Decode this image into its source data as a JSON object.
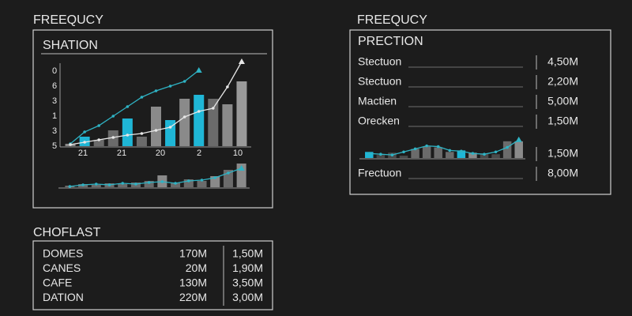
{
  "left_panel": {
    "title": "FREEQUCY",
    "subtitle": "SHATION",
    "y_labels": [
      "0",
      "6",
      "3",
      "1",
      "3",
      "5"
    ],
    "x_labels": [
      "21",
      "21",
      "20",
      "2",
      "10"
    ],
    "chart": {
      "type": "bar",
      "ylim": [
        0,
        110
      ],
      "values": [
        3,
        12,
        8,
        20,
        35,
        12,
        50,
        33,
        60,
        65,
        60,
        53,
        82
      ],
      "colors": [
        "#8a8a8a",
        "#1fb6d6",
        "#6b6b6b",
        "#6b6b6b",
        "#1fb6d6",
        "#6b6b6b",
        "#8a8a8a",
        "#1fb6d6",
        "#8a8a8a",
        "#1fb6d6",
        "#6b6b6b",
        "#8a8a8a",
        "#9a9a9a"
      ],
      "lines": [
        {
          "color": "#2fb3c4",
          "values": [
            3,
            18,
            26,
            38,
            50,
            62,
            70,
            76,
            82,
            96,
            null,
            null,
            null
          ]
        },
        {
          "color": "#e6e6e6",
          "values": [
            2,
            5,
            8,
            11,
            14,
            16,
            20,
            24,
            37,
            44,
            48,
            75,
            107
          ]
        }
      ]
    },
    "mini_chart": {
      "type": "bar",
      "ylim": [
        0,
        32
      ],
      "values": [
        2,
        4,
        3,
        5,
        4,
        6,
        8,
        15,
        6,
        10,
        8,
        14,
        22,
        30
      ],
      "colors": [
        "#6b6b6b",
        "#6b6b6b",
        "#6b6b6b",
        "#6b6b6b",
        "#6b6b6b",
        "#6b6b6b",
        "#6b6b6b",
        "#8a8a8a",
        "#6b6b6b",
        "#6b6b6b",
        "#6b6b6b",
        "#8a8a8a",
        "#6b6b6b",
        "#8a8a8a"
      ],
      "lines": [
        {
          "color": "#2fb3c4",
          "values": [
            1,
            3,
            4,
            3,
            5,
            4,
            6,
            7,
            5,
            8,
            9,
            12,
            18,
            24
          ]
        }
      ]
    }
  },
  "right_panel": {
    "title": "FREEQUCY",
    "heading": "PRECTION",
    "rows": [
      [
        "Stectuon",
        "4,50M"
      ],
      [
        "Stectuon",
        "2,20M"
      ],
      [
        "Mactien",
        "5,00M"
      ],
      [
        "Orecken",
        "1,50M"
      ]
    ],
    "chart": {
      "type": "bar",
      "ylim": [
        0,
        26
      ],
      "values": [
        8,
        4,
        7,
        3,
        12,
        15,
        14,
        8,
        10,
        7,
        6,
        5,
        22,
        22
      ],
      "colors": [
        "#1fb6d6",
        "#4a4a4a",
        "#4a4a4a",
        "#4a4a4a",
        "#6b6b6b",
        "#6b6b6b",
        "#6b6b6b",
        "#6b6b6b",
        "#1fb6d6",
        "#8a8a8a",
        "#4a4a4a",
        "#4a4a4a",
        "#6b6b6b",
        "#8a8a8a"
      ],
      "lines": [
        {
          "color": "#2fb3c4",
          "values": [
            6,
            5,
            4,
            8,
            12,
            16,
            15,
            10,
            9,
            6,
            5,
            8,
            14,
            24
          ]
        }
      ]
    },
    "footer_rows": [
      [
        null,
        "1,50M"
      ],
      [
        "Frectuon",
        "8,00M"
      ]
    ]
  },
  "bottom_panel": {
    "title": "CHOFLAST",
    "rows": [
      [
        "DOMES",
        "170M",
        "1,50M"
      ],
      [
        "CANES",
        "20M",
        "1,90M"
      ],
      [
        "CAFE",
        "130M",
        "3,50M"
      ],
      [
        "DATION",
        "220M",
        "3,00M"
      ]
    ]
  }
}
